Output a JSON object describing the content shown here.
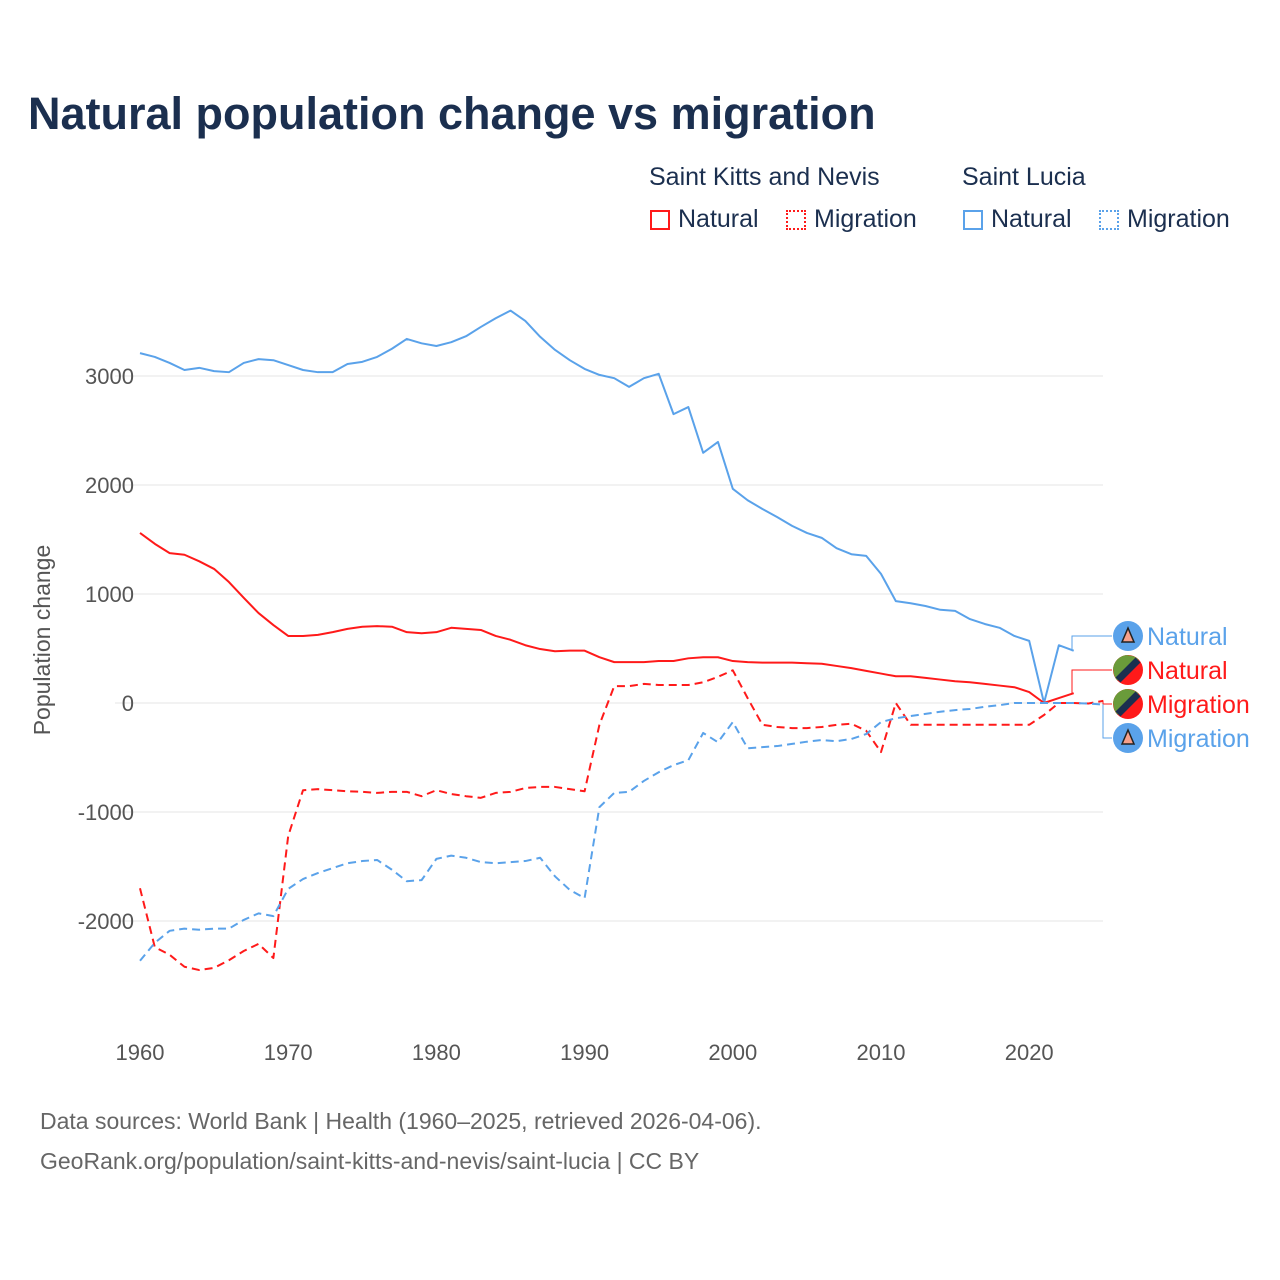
{
  "chart_data": {
    "type": "line",
    "title": "Natural population change vs migration",
    "xlabel": "",
    "ylabel": "Population change",
    "xlim": [
      1960,
      2025
    ],
    "ylim": [
      -2700,
      3700
    ],
    "x_ticks": [
      "1960",
      "1970",
      "1980",
      "1990",
      "2000",
      "2010",
      "2020"
    ],
    "y_ticks": [
      "3000",
      "2000",
      "1000",
      "0",
      "-1000",
      "-2000"
    ],
    "y_tick_values": [
      3000,
      2000,
      1000,
      0,
      -1000,
      -2000
    ],
    "grid": true,
    "legend_groups": [
      {
        "country": "Saint Kitts and Nevis",
        "items": [
          "Natural",
          "Migration"
        ]
      },
      {
        "country": "Saint Lucia",
        "items": [
          "Natural",
          "Migration"
        ]
      }
    ],
    "start_year": 1960,
    "series": [
      {
        "name": "Saint Lucia Natural",
        "end_label": "Natural",
        "color": "#5aa2ea",
        "dash": false,
        "values": [
          3210,
          3175,
          3120,
          3055,
          3075,
          3045,
          3035,
          3120,
          3155,
          3145,
          3100,
          3055,
          3035,
          3035,
          3110,
          3130,
          3175,
          3250,
          3340,
          3300,
          3275,
          3310,
          3365,
          3450,
          3530,
          3600,
          3505,
          3360,
          3240,
          3145,
          3065,
          3010,
          2980,
          2900,
          2980,
          3020,
          2650,
          2715,
          2295,
          2395,
          1965,
          1860,
          1780,
          1705,
          1625,
          1560,
          1515,
          1420,
          1365,
          1350,
          1185,
          935,
          915,
          890,
          855,
          845,
          770,
          725,
          690,
          615,
          570,
          0,
          530,
          480,
          null,
          null
        ]
      },
      {
        "name": "Saint Kitts and Nevis Natural",
        "end_label": "Natural",
        "color": "#ff1a1a",
        "dash": false,
        "values": [
          1560,
          1460,
          1375,
          1360,
          1300,
          1230,
          1110,
          965,
          825,
          715,
          615,
          615,
          625,
          650,
          680,
          700,
          705,
          700,
          650,
          640,
          650,
          690,
          680,
          670,
          615,
          580,
          530,
          495,
          475,
          480,
          480,
          420,
          375,
          375,
          375,
          385,
          385,
          410,
          420,
          420,
          385,
          375,
          370,
          370,
          370,
          365,
          360,
          340,
          320,
          295,
          270,
          245,
          245,
          230,
          215,
          200,
          190,
          175,
          160,
          145,
          100,
          0,
          45,
          90,
          null,
          null
        ]
      },
      {
        "name": "Saint Kitts and Nevis Migration",
        "end_label": "Migration",
        "color": "#ff1a1a",
        "dash": true,
        "values": [
          -1700,
          -2240,
          -2310,
          -2420,
          -2450,
          -2430,
          -2360,
          -2275,
          -2210,
          -2340,
          -1220,
          -800,
          -790,
          -800,
          -810,
          -815,
          -825,
          -815,
          -815,
          -855,
          -800,
          -835,
          -855,
          -870,
          -825,
          -815,
          -780,
          -770,
          -770,
          -790,
          -810,
          -200,
          155,
          155,
          175,
          165,
          165,
          165,
          190,
          240,
          300,
          45,
          -200,
          -220,
          -230,
          -230,
          -220,
          -200,
          -190,
          -255,
          -450,
          0,
          -200,
          -200,
          -200,
          -200,
          -200,
          -200,
          -200,
          -200,
          -200,
          -110,
          0,
          0,
          -5,
          20
        ]
      },
      {
        "name": "Saint Lucia Migration",
        "end_label": "Migration",
        "color": "#5aa2ea",
        "dash": true,
        "values": [
          -2365,
          -2200,
          -2090,
          -2070,
          -2080,
          -2070,
          -2070,
          -1990,
          -1930,
          -1955,
          -1705,
          -1615,
          -1560,
          -1515,
          -1470,
          -1450,
          -1440,
          -1530,
          -1635,
          -1625,
          -1430,
          -1400,
          -1420,
          -1460,
          -1470,
          -1460,
          -1450,
          -1420,
          -1590,
          -1715,
          -1790,
          -955,
          -825,
          -815,
          -715,
          -635,
          -570,
          -525,
          -275,
          -360,
          -175,
          -415,
          -405,
          -395,
          -375,
          -355,
          -340,
          -350,
          -330,
          -285,
          -175,
          -140,
          -120,
          -100,
          -80,
          -65,
          -55,
          -35,
          -20,
          0,
          0,
          0,
          0,
          0,
          -5,
          -15
        ]
      }
    ]
  },
  "footer": {
    "line1": "Data sources: World Bank | Health (1960–2025, retrieved 2026-04-06).",
    "line2": "GeoRank.org/population/saint-kitts-and-nevis/saint-lucia | CC BY"
  }
}
